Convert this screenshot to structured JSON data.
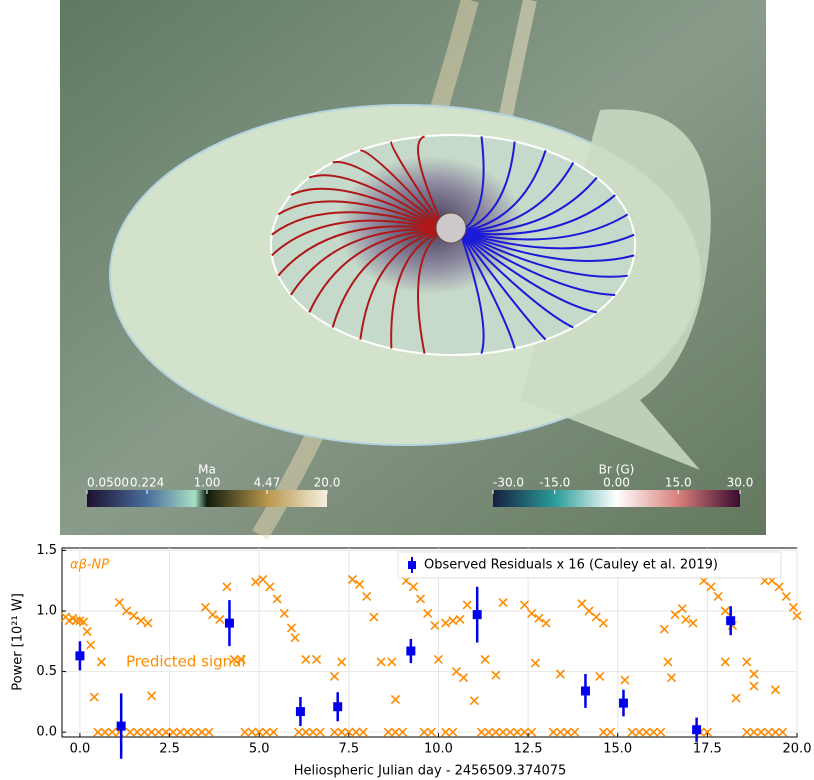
{
  "figure_top": {
    "colorbars": [
      {
        "label": "Ma",
        "scale": "log",
        "lim": [
          0.05,
          20
        ],
        "ticks": [
          {
            "value": 0.05,
            "label": "0.0500"
          },
          0.224,
          {
            "value": 1,
            "label": "1.00"
          },
          4.47,
          {
            "value": 20,
            "label": "20.0"
          }
        ]
      },
      {
        "label": "Br (G)",
        "scale": "linear",
        "lim": [
          -30,
          30
        ],
        "ticks": [
          {
            "value": -30,
            "label": "-30.0"
          },
          {
            "value": -15,
            "label": "-15.0"
          },
          {
            "value": 0,
            "label": "0.00"
          },
          {
            "value": 15,
            "label": "15.0"
          },
          {
            "value": 30,
            "label": "30.0"
          }
        ]
      }
    ]
  },
  "chart_data": {
    "type": "scatter",
    "xlabel": "Heliospheric Julian day - 2456509.374075",
    "ylabel": "Power [10²¹ W]",
    "annotations": [
      "αβ-NP",
      "Predicted signal"
    ],
    "xlim": [
      -0.5,
      20
    ],
    "ylim": [
      -0.04,
      1.52
    ],
    "xticks": [
      {
        "value": 0,
        "label": "0.0"
      },
      2.5,
      {
        "value": 5,
        "label": "5.0"
      },
      7.5,
      {
        "value": 10,
        "label": "10.0"
      },
      12.5,
      {
        "value": 15,
        "label": "15.0"
      },
      17.5,
      {
        "value": 20,
        "label": "20.0"
      }
    ],
    "yticks": [
      {
        "value": 0,
        "label": "0.0"
      },
      0.5,
      {
        "value": 1,
        "label": "1.0"
      },
      1.5
    ],
    "grid": true,
    "legend": "upper right",
    "series": [
      {
        "color": "#ff8c00",
        "marker": "x",
        "x": [
          -0.4,
          -0.3,
          -0.2,
          -0.1,
          0.0,
          0.1,
          0.2,
          0.3,
          0.4,
          0.6,
          1.1,
          1.3,
          1.5,
          1.7,
          1.9,
          2.0,
          3.5,
          3.7,
          3.9,
          4.1,
          4.3,
          4.5,
          4.9,
          5.1,
          5.3,
          5.5,
          5.7,
          5.9,
          6.0,
          6.3,
          6.6,
          7.1,
          7.3,
          7.6,
          7.8,
          8.0,
          8.2,
          8.4,
          8.7,
          8.8,
          9.1,
          9.3,
          9.5,
          9.7,
          9.9,
          10.0,
          10.2,
          10.4,
          10.6,
          10.8,
          10.5,
          10.7,
          11.0,
          11.3,
          11.6,
          11.8,
          12.4,
          12.6,
          12.8,
          13.0,
          12.7,
          13.4,
          14.0,
          14.2,
          14.4,
          14.6,
          14.5,
          15.2,
          16.3,
          16.4,
          16.5,
          16.6,
          16.8,
          16.9,
          17.1,
          17.4,
          17.6,
          17.8,
          18.0,
          18.2,
          18.0,
          18.3,
          18.6,
          18.8,
          18.8,
          19.4,
          19.1,
          19.3,
          19.5,
          19.7,
          19.9,
          20.0,
          0.5,
          0.7,
          0.9,
          1.1,
          1.4,
          1.6,
          1.8,
          2.0,
          2.2,
          2.4,
          2.6,
          2.8,
          3.0,
          3.2,
          3.4,
          3.6,
          4.6,
          4.8,
          5.0,
          5.2,
          5.4,
          6.1,
          6.3,
          6.5,
          6.7,
          7.1,
          7.3,
          7.5,
          7.7,
          7.9,
          8.6,
          8.8,
          9.0,
          9.6,
          9.8,
          10.2,
          10.4,
          11.2,
          11.4,
          11.6,
          11.8,
          12.0,
          12.2,
          12.4,
          12.6,
          13.2,
          13.4,
          13.6,
          13.8,
          14.6,
          14.8,
          15.4,
          15.6,
          15.8,
          16.0,
          16.2,
          17.3,
          17.5,
          18.6,
          18.8,
          19.0,
          19.2,
          19.4,
          19.6
        ],
        "values": [
          0.95,
          0.92,
          0.94,
          0.92,
          0.92,
          0.91,
          0.83,
          0.72,
          0.29,
          0.58,
          1.07,
          1.0,
          0.96,
          0.92,
          0.9,
          0.3,
          1.03,
          0.97,
          0.93,
          1.2,
          0.6,
          0.6,
          1.24,
          1.26,
          1.2,
          1.1,
          0.98,
          0.86,
          0.78,
          0.6,
          0.6,
          0.46,
          0.58,
          1.26,
          1.22,
          1.12,
          0.95,
          0.58,
          0.58,
          0.27,
          1.25,
          1.2,
          1.1,
          0.98,
          0.88,
          0.6,
          0.9,
          0.92,
          0.93,
          1.05,
          0.5,
          0.45,
          0.26,
          0.6,
          0.47,
          1.07,
          1.05,
          0.98,
          0.94,
          0.9,
          0.57,
          0.48,
          1.06,
          1.0,
          0.95,
          0.9,
          0.46,
          0.43,
          0.85,
          0.58,
          0.45,
          0.97,
          1.02,
          0.93,
          0.9,
          1.25,
          1.2,
          1.12,
          1.0,
          0.88,
          0.58,
          0.28,
          0.58,
          0.48,
          0.38,
          0.35,
          1.25,
          1.25,
          1.2,
          1.12,
          1.03,
          0.96,
          0,
          0,
          0,
          0,
          0,
          0,
          0,
          0,
          0,
          0,
          0,
          0,
          0,
          0,
          0,
          0,
          0,
          0,
          0,
          0,
          0,
          0,
          0,
          0,
          0,
          0,
          0,
          0,
          0,
          0,
          0,
          0,
          0,
          0,
          0,
          0,
          0,
          0,
          0,
          0,
          0,
          0,
          0,
          0,
          0,
          0,
          0,
          0,
          0,
          0,
          0,
          0,
          0,
          0,
          0,
          0,
          0,
          0,
          0,
          0,
          0,
          0,
          0,
          0
        ]
      },
      {
        "name": "Observed Residuals x 16 (Cauley et al. 2019)",
        "color": "#0000ee",
        "marker": "square",
        "x": [
          0.0,
          1.15,
          4.17,
          6.15,
          7.19,
          9.23,
          11.08,
          14.1,
          15.16,
          17.2,
          18.15
        ],
        "values": [
          0.63,
          0.05,
          0.9,
          0.17,
          0.21,
          0.67,
          0.97,
          0.34,
          0.24,
          0.02,
          0.92
        ],
        "errors": [
          0.12,
          0.27,
          0.19,
          0.12,
          0.12,
          0.1,
          0.23,
          0.14,
          0.11,
          0.1,
          0.12
        ]
      }
    ]
  }
}
